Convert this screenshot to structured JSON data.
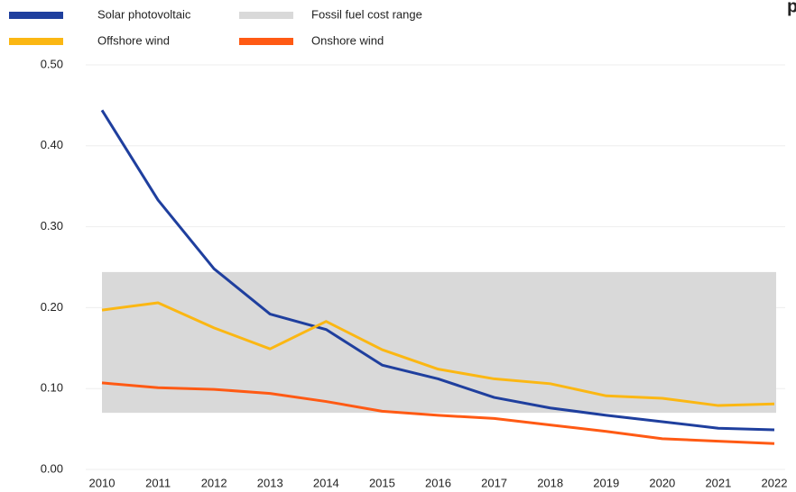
{
  "chart_data": {
    "type": "line",
    "annotation": "p",
    "categories": [
      "2010",
      "2011",
      "2012",
      "2013",
      "2014",
      "2015",
      "2016",
      "2017",
      "2018",
      "2019",
      "2020",
      "2021",
      "2022"
    ],
    "band": {
      "name": "Fossil fuel cost range",
      "color": "#d9d9d9",
      "low": 0.07,
      "high": 0.244
    },
    "series": [
      {
        "name": "Solar photovoltaic",
        "color": "#1f3f9e",
        "values": [
          0.444,
          0.333,
          0.248,
          0.192,
          0.173,
          0.129,
          0.112,
          0.089,
          0.076,
          0.067,
          0.059,
          0.051,
          0.049
        ]
      },
      {
        "name": "Offshore wind",
        "color": "#fbb713",
        "values": [
          0.197,
          0.206,
          0.175,
          0.149,
          0.183,
          0.148,
          0.124,
          0.112,
          0.106,
          0.091,
          0.088,
          0.079,
          0.081
        ]
      },
      {
        "name": "Onshore wind",
        "color": "#ff5a14",
        "values": [
          0.107,
          0.101,
          0.099,
          0.094,
          0.084,
          0.072,
          0.067,
          0.063,
          0.055,
          0.047,
          0.038,
          0.035,
          0.032
        ]
      }
    ],
    "ylim": [
      0,
      0.5
    ],
    "yticks": [
      {
        "value": 0,
        "label": "0.00"
      },
      {
        "value": 0.1,
        "label": "0.10"
      },
      {
        "value": 0.2,
        "label": "0.20"
      },
      {
        "value": 0.3,
        "label": "0.30"
      },
      {
        "value": 0.4,
        "label": "0.40"
      },
      {
        "value": 0.5,
        "label": "0.50"
      }
    ],
    "grid": true
  }
}
